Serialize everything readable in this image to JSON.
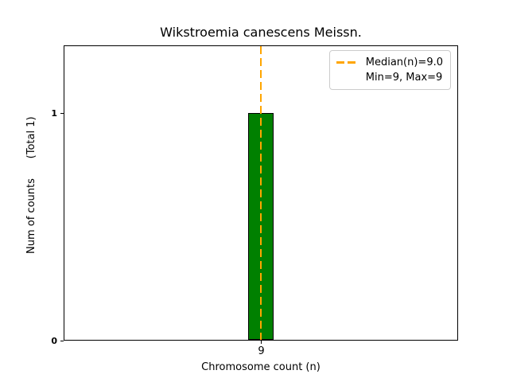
{
  "chart_data": {
    "type": "bar",
    "title": "Wikstroemia canescens Meissn.",
    "xlabel": "Chromosome count (n)",
    "ylabel": "Num of counts      (Total 1)",
    "categories": [
      "9"
    ],
    "values": [
      1
    ],
    "total_counts": 1,
    "x_ticks": [
      "9"
    ],
    "y_ticks": [
      "0",
      "1"
    ],
    "y_tick_values": [
      0,
      1
    ],
    "ylim": [
      0,
      1.3
    ],
    "median": 9.0,
    "min": 9,
    "max": 9,
    "grid": false,
    "legend": {
      "position": "upper right",
      "items": [
        {
          "label": "Median(n)=9.0",
          "marker": "orange-dashed-line"
        },
        {
          "label": "Min=9, Max=9",
          "marker": "none"
        }
      ]
    },
    "colors": {
      "bar_fill": "#008000",
      "bar_edge": "#000000",
      "median_line": "#ffa500",
      "axis": "#000000",
      "legend_border": "#cccccc",
      "text": "#000000"
    }
  }
}
